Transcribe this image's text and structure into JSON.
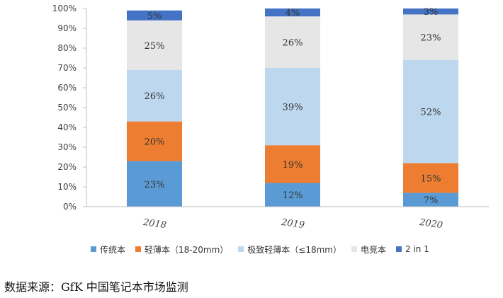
{
  "chart_data": {
    "type": "bar",
    "stacked": true,
    "categories": [
      "2018",
      "2019",
      "2020"
    ],
    "ylim": [
      0,
      100
    ],
    "y_ticks": [
      "0%",
      "10%",
      "20%",
      "30%",
      "40%",
      "50%",
      "60%",
      "70%",
      "80%",
      "90%",
      "100%"
    ],
    "grid": false,
    "legend_position": "bottom",
    "series": [
      {
        "name": "传统本",
        "color": "#5b9bd5",
        "values": [
          23,
          12,
          7
        ],
        "labels": [
          "23%",
          "12%",
          "7%"
        ]
      },
      {
        "name": "轻薄本（18-20mm）",
        "color": "#ed7d31",
        "values": [
          20,
          19,
          15
        ],
        "labels": [
          "20%",
          "19%",
          "15%"
        ]
      },
      {
        "name": "极致轻薄本（≤18mm）",
        "color": "#bdd7ee",
        "values": [
          26,
          39,
          52
        ],
        "labels": [
          "26%",
          "39%",
          "52%"
        ]
      },
      {
        "name": "电竞本",
        "color": "#e7e6e6",
        "values": [
          25,
          26,
          23
        ],
        "labels": [
          "25%",
          "26%",
          "23%"
        ]
      },
      {
        "name": "2 in 1",
        "color": "#4472c4",
        "values": [
          5,
          4,
          3
        ],
        "labels": [
          "5%",
          "4%",
          "3%"
        ]
      }
    ]
  },
  "source_text": "数据来源：GfK 中国笔记本市场监测"
}
